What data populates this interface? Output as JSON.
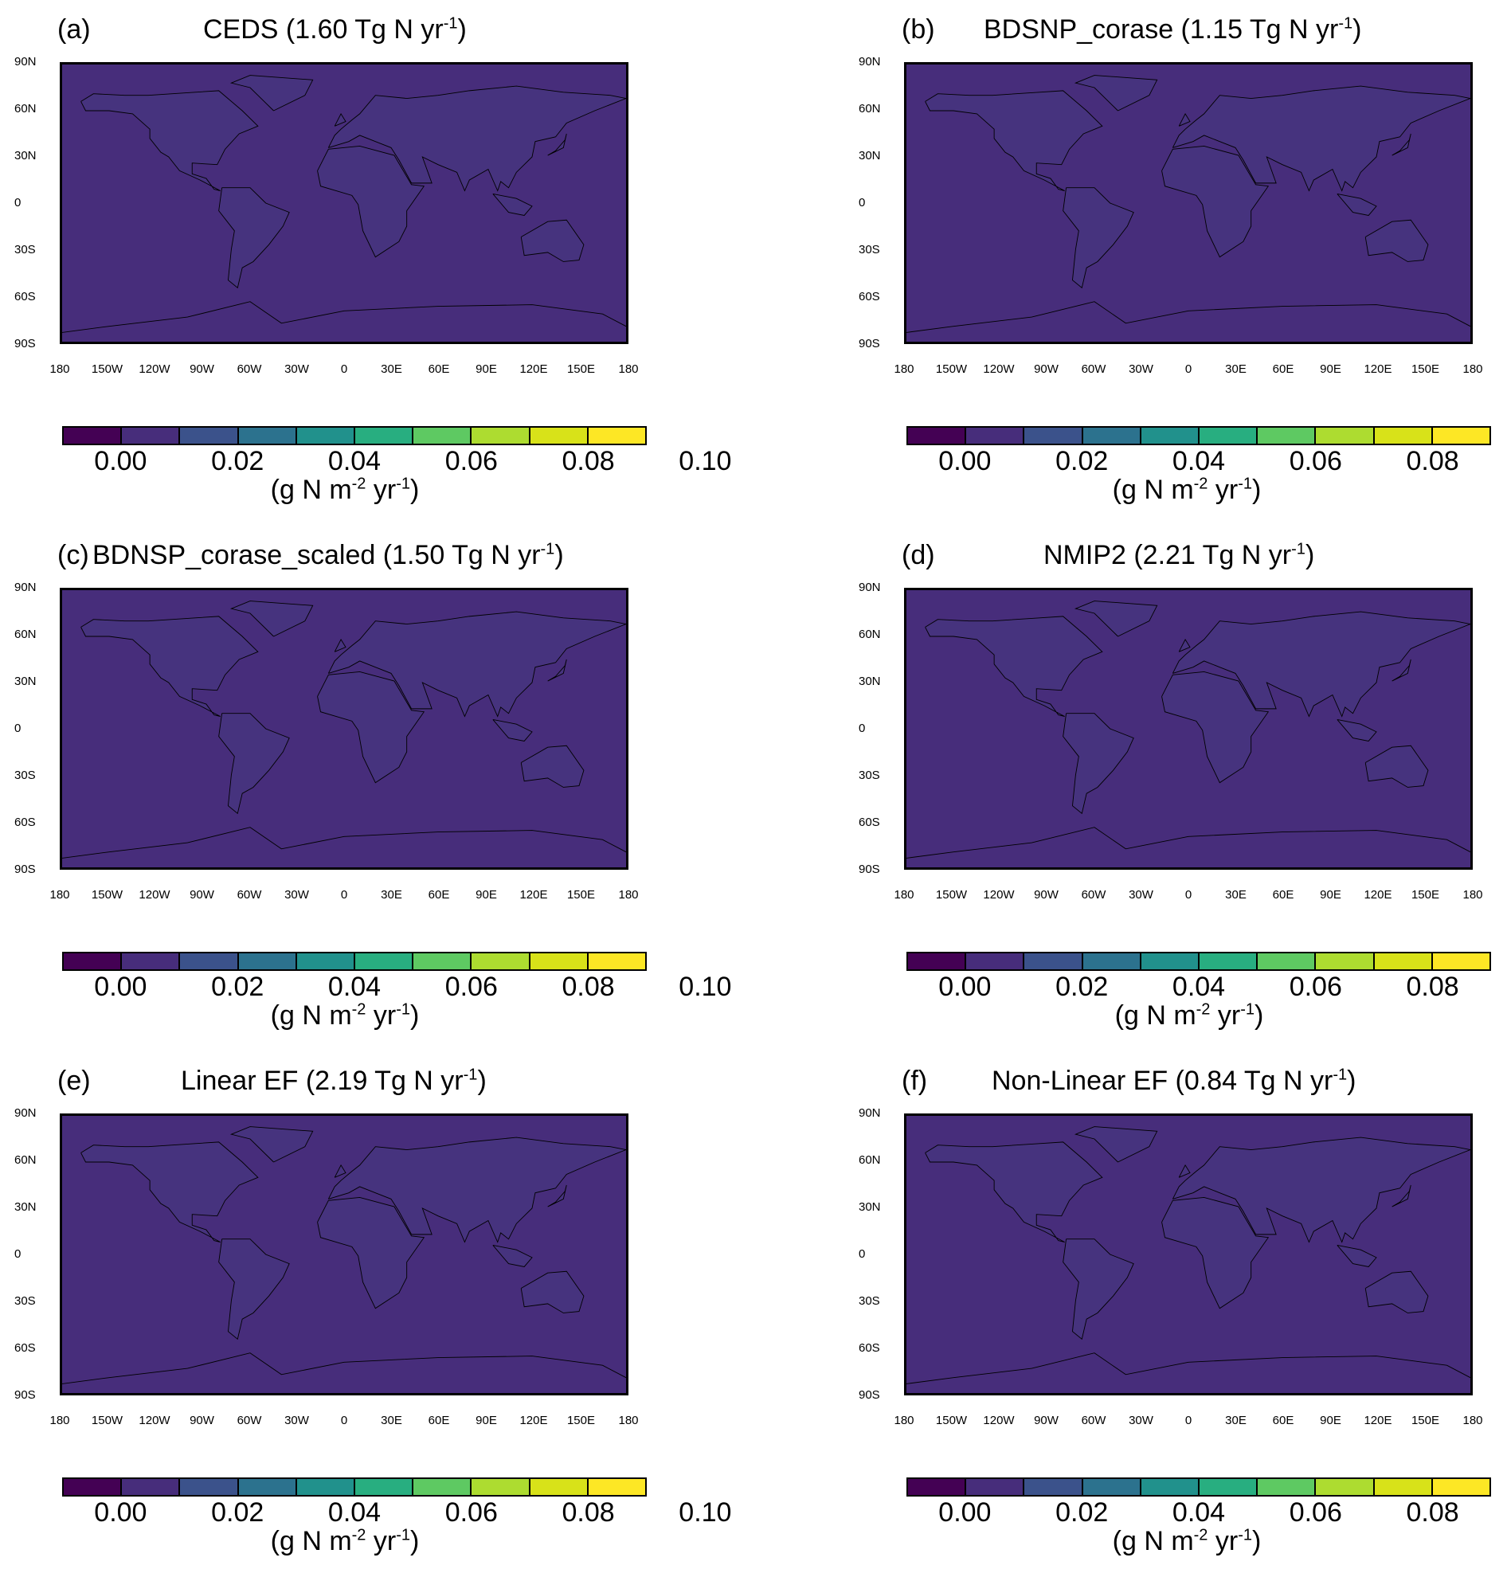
{
  "colors": {
    "ocean": "#472d7b",
    "land": "#46337e",
    "colorbar": [
      "#440154",
      "#472d7b",
      "#3b528b",
      "#2c728e",
      "#21918c",
      "#28ae80",
      "#5ec962",
      "#addc30",
      "#d8e219",
      "#fde725"
    ]
  },
  "axes": {
    "lat_ticks": [
      "90N",
      "60N",
      "30N",
      "0",
      "30S",
      "60S",
      "90S"
    ],
    "lon_ticks": [
      "180",
      "150W",
      "120W",
      "90W",
      "60W",
      "30W",
      "0",
      "30E",
      "60E",
      "90E",
      "120E",
      "150E",
      "180"
    ]
  },
  "colorbar": {
    "tick_labels": [
      "0.00",
      "0.02",
      "0.04",
      "0.06",
      "0.08",
      "0.10"
    ],
    "unit_prefix": "(g N m",
    "unit_exp1": "-2",
    "unit_mid": " yr",
    "unit_exp2": "-1",
    "unit_suffix": ")"
  },
  "panels": [
    {
      "label": "(a)",
      "title": "CEDS (1.60 Tg N yr",
      "exp": "-1",
      "close": ")"
    },
    {
      "label": "(b)",
      "title": "BDSNP_corase (1.15 Tg N yr",
      "exp": "-1",
      "close": ")"
    },
    {
      "label": "(c)",
      "title": "BDNSP_corase_scaled (1.50 Tg N yr",
      "exp": "-1",
      "close": ")"
    },
    {
      "label": "(d)",
      "title": "NMIP2 (2.21 Tg N yr",
      "exp": "-1",
      "close": ")"
    },
    {
      "label": "(e)",
      "title": "Linear EF (2.19 Tg N yr",
      "exp": "-1",
      "close": ")"
    },
    {
      "label": "(f)",
      "title": "Non-Linear EF (0.84 Tg N yr",
      "exp": "-1",
      "close": ")"
    }
  ]
}
